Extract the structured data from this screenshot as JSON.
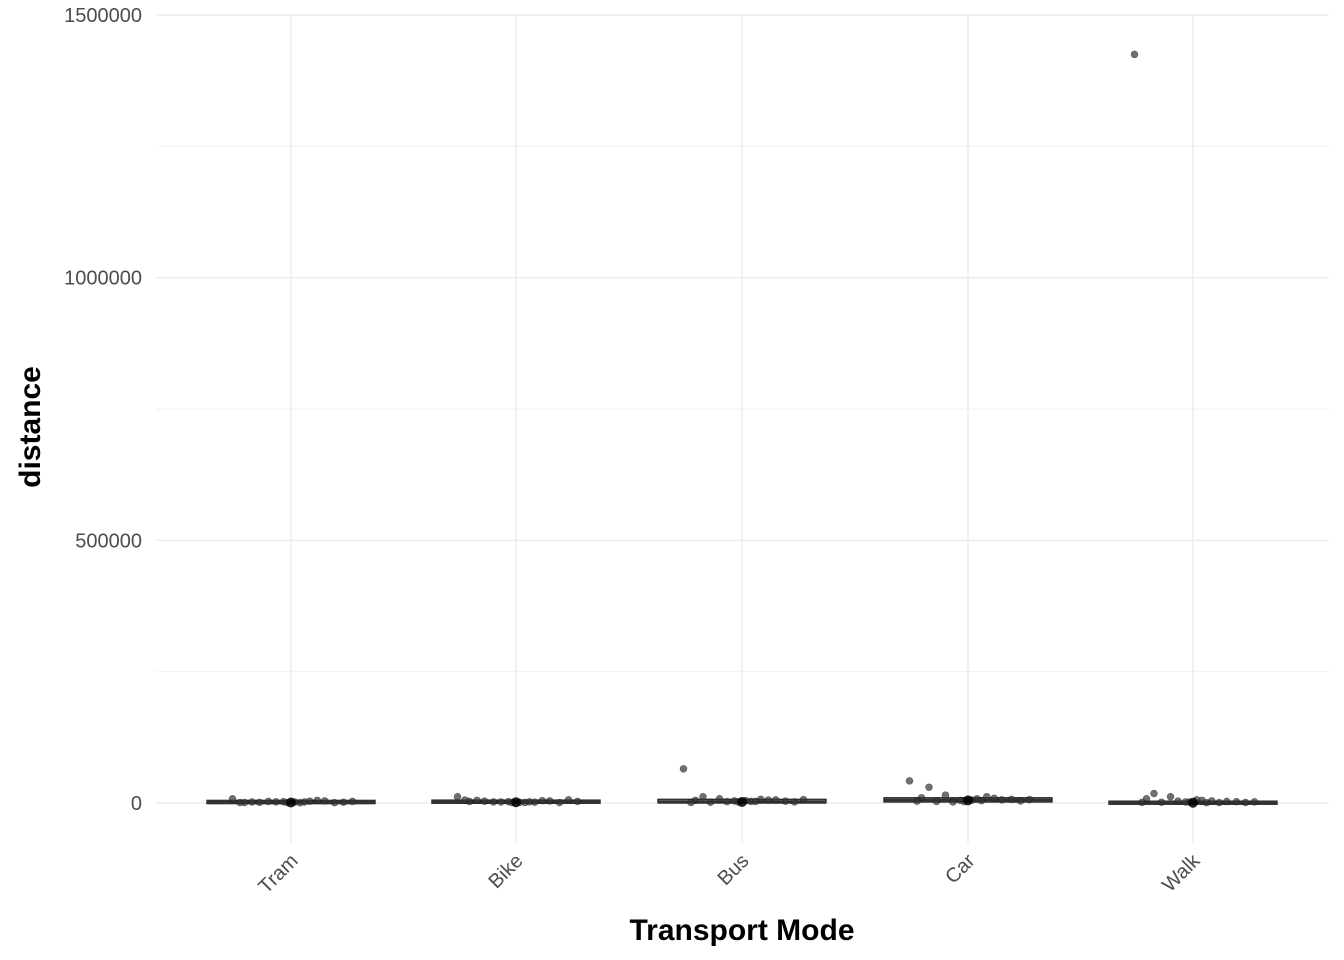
{
  "chart_data": {
    "type": "scatter",
    "subtype": "boxplot-with-jittered-points",
    "xlabel": "Transport Mode",
    "ylabel": "distance",
    "categories": [
      "Tram",
      "Bike",
      "Bus",
      "Car",
      "Walk"
    ],
    "y_ticks": [
      0,
      500000,
      1000000,
      1500000
    ],
    "y_tick_labels": [
      "0",
      "500000",
      "1000000",
      "1500000"
    ],
    "ylim": [
      -75000,
      1500000
    ],
    "grid": true,
    "legend": "none",
    "colors": {
      "points": "#333333",
      "box": "#333333",
      "grid": "#ebebeb"
    },
    "series": [
      {
        "category": "Tram",
        "median": 1000,
        "q1": 300,
        "q3": 3000,
        "points": [
          8000,
          2000,
          3000,
          1000,
          500,
          4000,
          2500,
          1500,
          3500,
          1200,
          600,
          2200,
          5000,
          1800,
          900,
          3000,
          2000,
          700
        ]
      },
      {
        "category": "Bike",
        "median": 1500,
        "q1": 500,
        "q3": 3500,
        "points": [
          12000,
          5000,
          2000,
          3000,
          1000,
          4000,
          2500,
          6000,
          1500,
          3500,
          800,
          2000,
          4500,
          1200,
          5500,
          3000,
          2200,
          700
        ]
      },
      {
        "category": "Bus",
        "median": 2000,
        "q1": 800,
        "q3": 5000,
        "points": [
          65000,
          12000,
          8000,
          5000,
          3000,
          6000,
          4000,
          2000,
          7000,
          1500,
          3500,
          2500,
          5500,
          4500,
          1000,
          6500,
          3000,
          2000
        ]
      },
      {
        "category": "Car",
        "median": 5000,
        "q1": 2000,
        "q3": 8000,
        "points": [
          42000,
          30000,
          15000,
          10000,
          8000,
          6000,
          5000,
          4000,
          12000,
          3000,
          7000,
          2000,
          9000,
          5500,
          3500,
          6500,
          4500,
          2500
        ]
      },
      {
        "category": "Walk",
        "median": 500,
        "q1": 100,
        "q3": 1500,
        "points": [
          1425000,
          18000,
          12000,
          8000,
          5000,
          3000,
          2000,
          1000,
          4000,
          1500,
          2500,
          3500,
          800,
          6000,
          1200,
          2200,
          700,
          1800
        ]
      }
    ]
  }
}
